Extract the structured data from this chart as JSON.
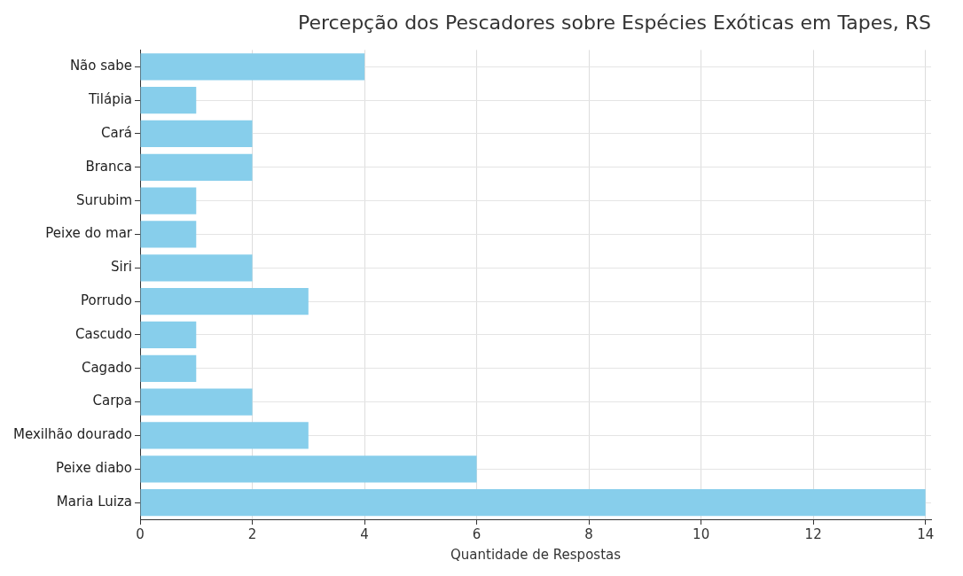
{
  "chart_data": {
    "type": "bar",
    "orientation": "horizontal",
    "title": "Percepção dos Pescadores sobre Espécies Exóticas em Tapes, RS",
    "xlabel": "Quantidade de Respostas",
    "categories": [
      "Não sabe",
      "Tilápia",
      "Cará",
      "Branca",
      "Surubim",
      "Peixe do mar",
      "Siri",
      "Porrudo",
      "Cascudo",
      "Cagado",
      "Carpa",
      "Mexilhão dourado",
      "Peixe diabo",
      "Maria Luiza"
    ],
    "values": [
      4,
      1,
      2,
      2,
      1,
      1,
      2,
      3,
      1,
      1,
      2,
      3,
      6,
      14
    ],
    "color": "#87ceeb",
    "xlim": [
      0,
      14.1
    ],
    "xticks": [
      0,
      2,
      4,
      6,
      8,
      10,
      12,
      14
    ],
    "grid": true
  }
}
